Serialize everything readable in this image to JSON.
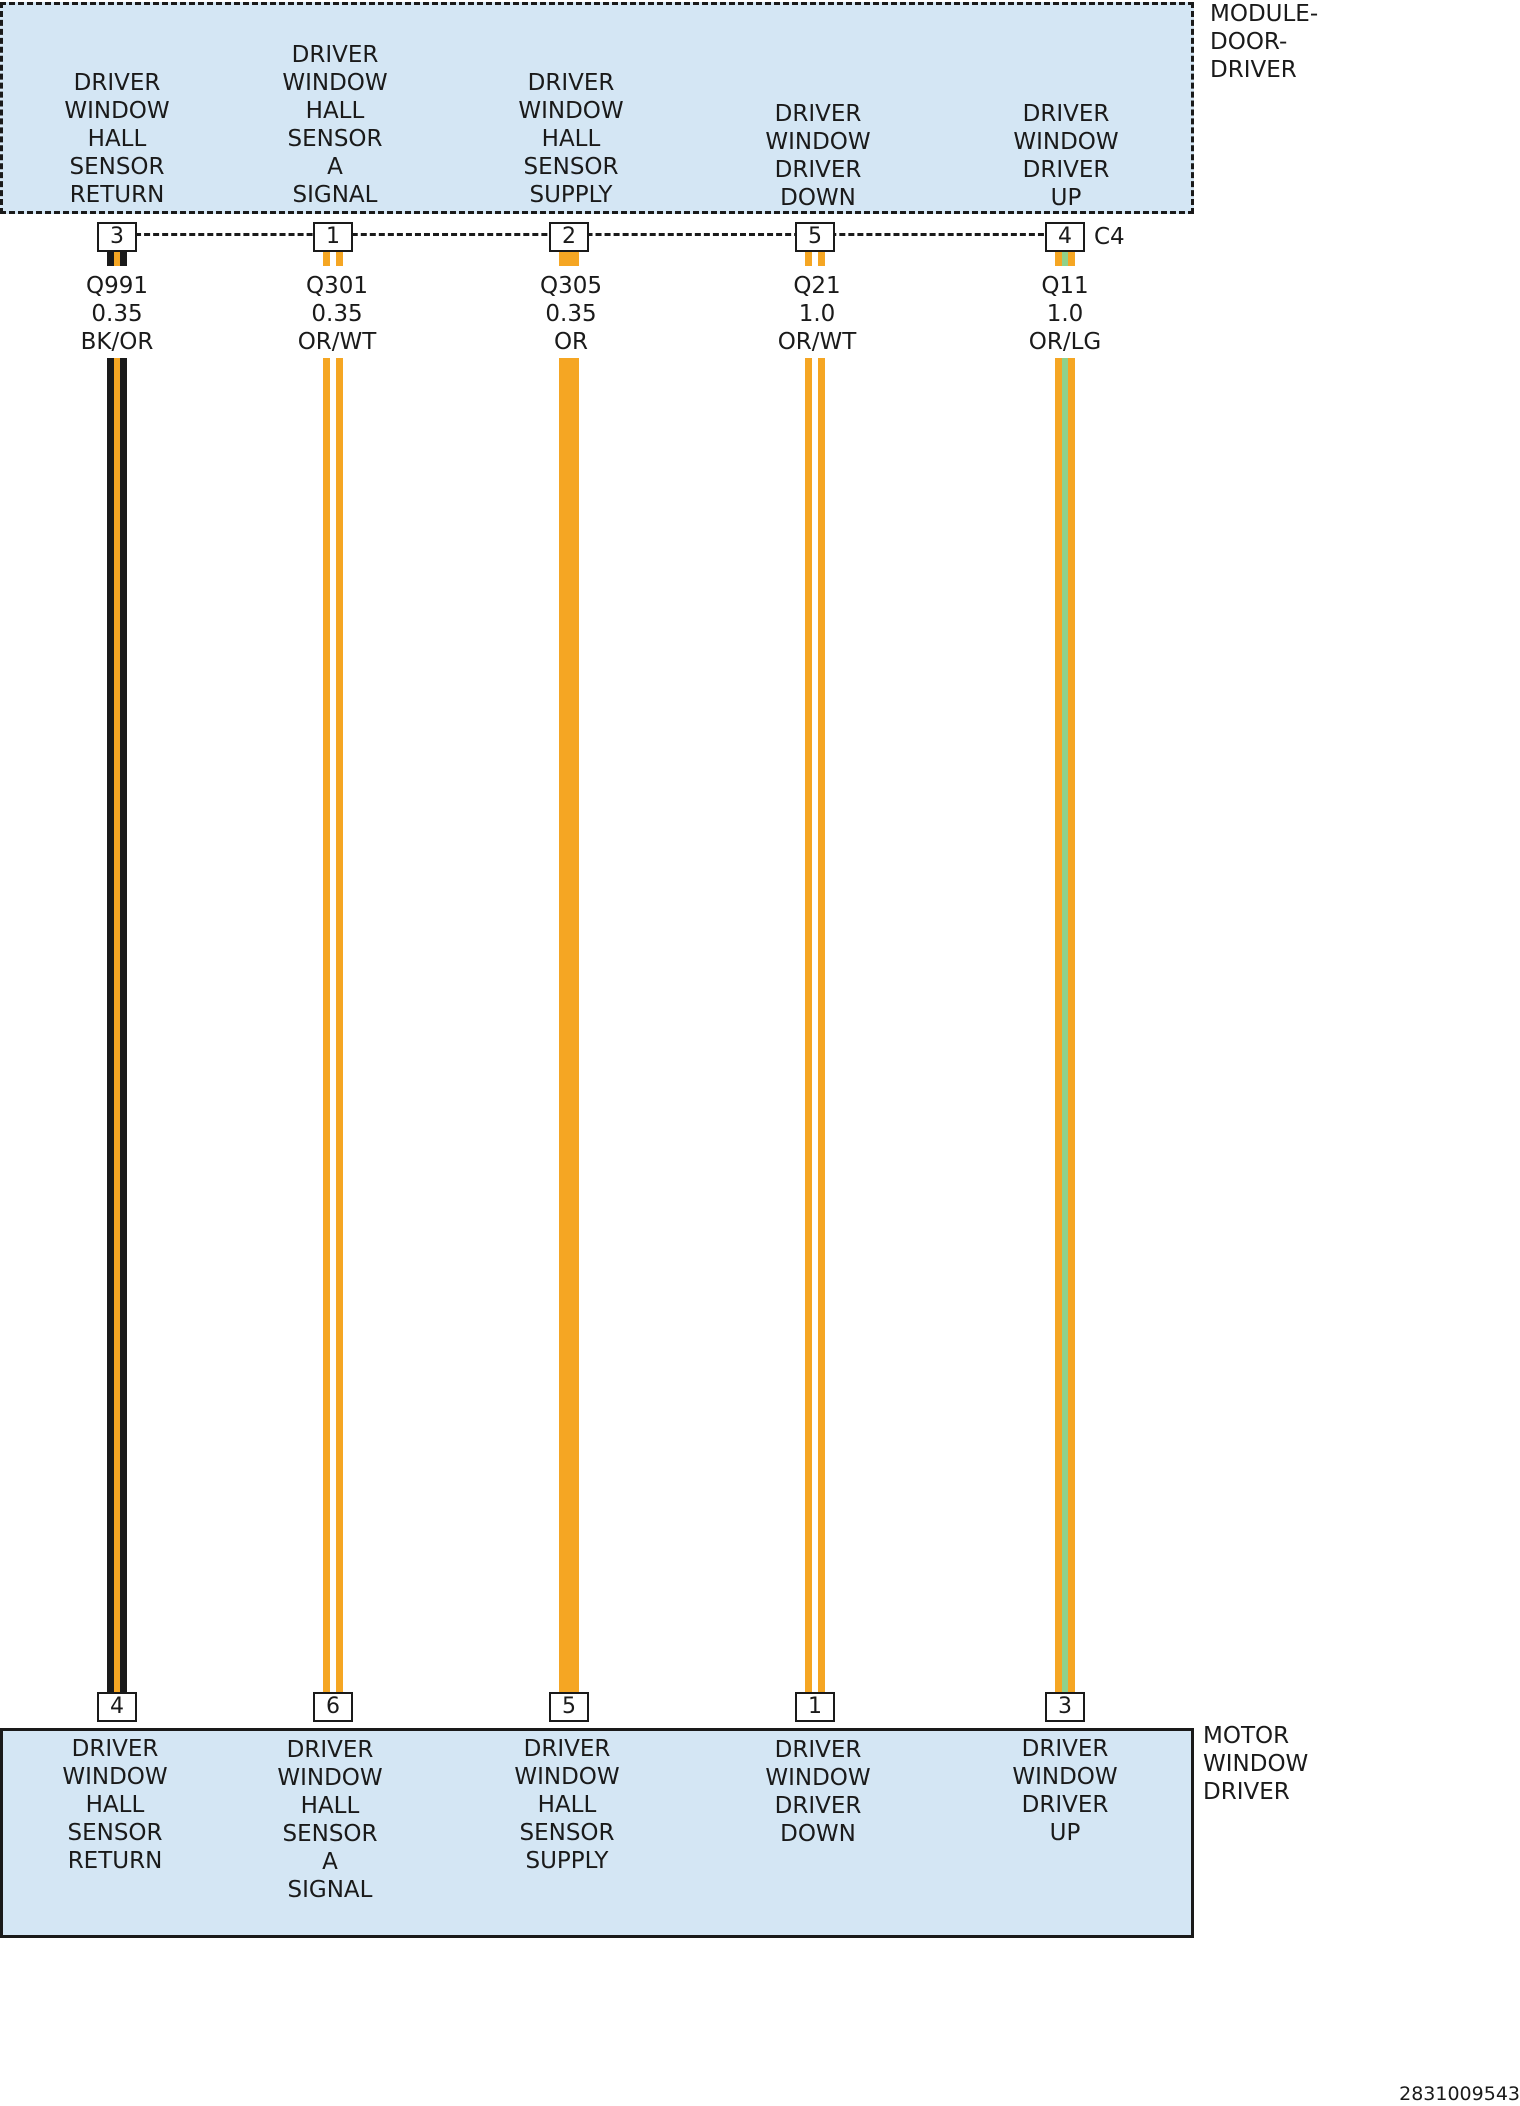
{
  "module": {
    "name": "MODULE-\nDOOR-\nDRIVER",
    "connector": "C4",
    "pins": [
      {
        "pin": "3",
        "function": "DRIVER\nWINDOW\nHALL\nSENSOR\nRETURN"
      },
      {
        "pin": "1",
        "function": "DRIVER\nWINDOW\nHALL\nSENSOR\nA\nSIGNAL"
      },
      {
        "pin": "2",
        "function": "DRIVER\nWINDOW\nHALL\nSENSOR\nSUPPLY"
      },
      {
        "pin": "5",
        "function": "DRIVER\nWINDOW\nDRIVER\nDOWN"
      },
      {
        "pin": "4",
        "function": "DRIVER\nWINDOW\nDRIVER\nUP"
      }
    ]
  },
  "motor": {
    "name": "MOTOR\nWINDOW\nDRIVER",
    "pins": [
      {
        "pin": "4",
        "function": "DRIVER\nWINDOW\nHALL\nSENSOR\nRETURN"
      },
      {
        "pin": "6",
        "function": "DRIVER\nWINDOW\nHALL\nSENSOR\nA\nSIGNAL"
      },
      {
        "pin": "5",
        "function": "DRIVER\nWINDOW\nHALL\nSENSOR\nSUPPLY"
      },
      {
        "pin": "1",
        "function": "DRIVER\nWINDOW\nDRIVER\nDOWN"
      },
      {
        "pin": "3",
        "function": "DRIVER\nWINDOW\nDRIVER\nUP"
      }
    ]
  },
  "wires": [
    {
      "circuit": "Q991",
      "gauge": "0.35",
      "color_code": "BK/OR",
      "base_color": "#1a1a1a",
      "stripe_color": "#f5a623"
    },
    {
      "circuit": "Q301",
      "gauge": "0.35",
      "color_code": "OR/WT",
      "base_color": "#f5a623",
      "stripe_color": "#ffffff"
    },
    {
      "circuit": "Q305",
      "gauge": "0.35",
      "color_code": "OR",
      "base_color": "#f5a623",
      "stripe_color": ""
    },
    {
      "circuit": "Q21",
      "gauge": "1.0",
      "color_code": "OR/WT",
      "base_color": "#f5a623",
      "stripe_color": "#ffffff"
    },
    {
      "circuit": "Q11",
      "gauge": "1.0",
      "color_code": "OR/LG",
      "base_color": "#f5a623",
      "stripe_color": "#8fd18a"
    }
  ],
  "diagram_id": "2831009543"
}
